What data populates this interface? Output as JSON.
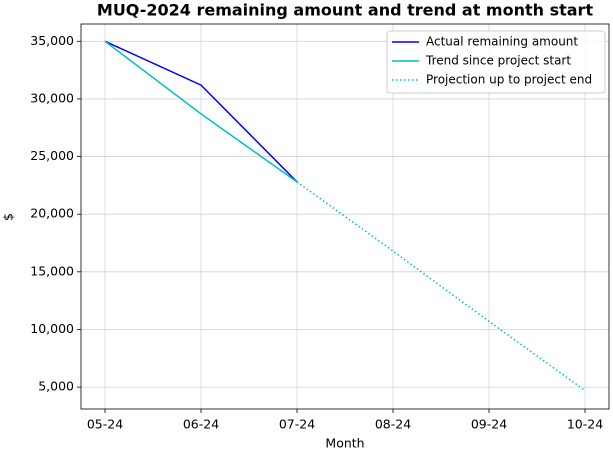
{
  "chart_data": {
    "type": "line",
    "title": "MUQ-2024 remaining amount and trend at month start",
    "x_label": "Month",
    "y_label": "$",
    "categories": [
      "05-24",
      "06-24",
      "07-24",
      "08-24",
      "09-24",
      "10-24"
    ],
    "series": [
      {
        "name": "Actual remaining amount",
        "color": "#0000ff",
        "linestyle": "solid",
        "values": [
          35000,
          31200,
          22800,
          null,
          null,
          null
        ]
      },
      {
        "name": "Trend since project start",
        "color": "#00bfbf",
        "linestyle": "solid",
        "values": [
          35000,
          28700,
          22800,
          null,
          null,
          null
        ]
      },
      {
        "name": "Projection up to project end",
        "color": "#00bfbf",
        "linestyle": "dotted",
        "values": [
          null,
          null,
          22800,
          16800,
          10700,
          4700
        ]
      }
    ],
    "ylim": [
      3100,
      36500
    ],
    "yticks": [
      {
        "value": 5000,
        "label": "5,000"
      },
      {
        "value": 10000,
        "label": "10,000"
      },
      {
        "value": 15000,
        "label": "15,000"
      },
      {
        "value": 20000,
        "label": "20,000"
      },
      {
        "value": 25000,
        "label": "25,000"
      },
      {
        "value": 30000,
        "label": "30,000"
      },
      {
        "value": 35000,
        "label": "35,000"
      }
    ],
    "grid": true,
    "legend": "upper right"
  }
}
